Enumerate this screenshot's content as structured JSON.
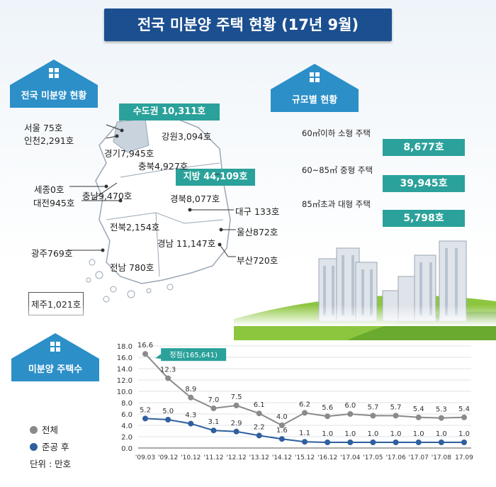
{
  "title": "전국 미분양 주택 현황 (17년 9월)",
  "sections": {
    "national": "전국 미분양 현황",
    "by_size": "규모별 현황",
    "count": "미분양 주택수"
  },
  "map": {
    "metro": "수도권 10,311호",
    "local": "지방 44,109호",
    "regions": {
      "seoul": "서울   75호",
      "incheon": "인천2,291호",
      "gangwon": "강원3,094호",
      "gyeonggi": "경기7,945호",
      "chungbuk": "충북4,927호",
      "sejong": "세종0호",
      "chungnam": "충남9,470호",
      "daejeon": "대전945호",
      "gyeongbuk": "경북8,077호",
      "daegu": "대구 133호",
      "jeonbuk": "전북2,154호",
      "ulsan": "울산872호",
      "gyeongnam": "경남 11,147호",
      "gwangju": "광주769호",
      "busan": "부산720호",
      "jeonnam": "전남 780호",
      "jeju": "제주1,021호"
    }
  },
  "by_size": [
    {
      "label": "60㎡이하 소형 주택",
      "value": "8,677호"
    },
    {
      "label": "60~85㎡ 중형 주택",
      "value": "39,945호"
    },
    {
      "label": "85㎡초과 대형 주택",
      "value": "5,798호"
    }
  ],
  "legend": {
    "total": "전체",
    "completed": "준공 후",
    "unit": "단위 : 만호"
  },
  "colors": {
    "total": "#8a8a8a",
    "completed": "#2f5f9e",
    "accent": "#2aa19a",
    "banner": "#1b4f8f",
    "house": "#2c8fc8"
  },
  "chart_data": {
    "type": "line",
    "categories": [
      "'09.03",
      "'09.12",
      "'10.12",
      "'11.12",
      "'12.12",
      "'13.12",
      "'14.12",
      "'15.12",
      "'16.12",
      "'17.04",
      "'17.05",
      "'17.06",
      "'17.07",
      "'17.08",
      "17.09"
    ],
    "series": [
      {
        "name": "전체",
        "values": [
          16.6,
          12.3,
          8.9,
          7.0,
          7.5,
          6.1,
          4.0,
          6.2,
          5.6,
          6.0,
          5.7,
          5.7,
          5.4,
          5.3,
          5.4
        ]
      },
      {
        "name": "준공 후",
        "values": [
          5.2,
          5.0,
          4.3,
          3.1,
          2.9,
          2.2,
          1.6,
          1.1,
          1.0,
          1.0,
          1.0,
          1.0,
          1.0,
          1.0,
          1.0
        ]
      }
    ],
    "ylim": [
      0,
      18
    ],
    "yticks": [
      0,
      2,
      4,
      6,
      8,
      10,
      12,
      14,
      16,
      18
    ],
    "annotation": "정점(165,641)",
    "grid": true
  }
}
